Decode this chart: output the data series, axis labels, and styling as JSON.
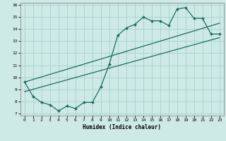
{
  "xlabel": "Humidex (Indice chaleur)",
  "ylabel": "",
  "xlim": [
    -0.5,
    23.5
  ],
  "ylim": [
    6.8,
    16.2
  ],
  "yticks": [
    7,
    8,
    9,
    10,
    11,
    12,
    13,
    14,
    15,
    16
  ],
  "xticks": [
    0,
    1,
    2,
    3,
    4,
    5,
    6,
    7,
    8,
    9,
    10,
    11,
    12,
    13,
    14,
    15,
    16,
    17,
    18,
    19,
    20,
    21,
    22,
    23
  ],
  "bg_color": "#ceeae6",
  "grid_color": "#aad4ce",
  "line_color": "#1e6b5e",
  "line1_x": [
    0,
    1,
    2,
    3,
    4,
    5,
    6,
    7,
    8,
    9,
    10,
    11,
    12,
    13,
    14,
    15,
    16,
    17,
    18,
    19,
    20,
    21,
    22,
    23
  ],
  "line1_y": [
    9.6,
    8.4,
    7.9,
    7.7,
    7.2,
    7.6,
    7.4,
    7.9,
    7.9,
    9.2,
    11.1,
    13.5,
    14.1,
    14.4,
    15.0,
    14.7,
    14.7,
    14.3,
    15.7,
    15.8,
    14.9,
    14.9,
    13.6,
    13.6
  ],
  "line2_x": [
    0,
    23
  ],
  "line2_y": [
    8.8,
    13.3
  ],
  "line3_x": [
    0,
    23
  ],
  "line3_y": [
    9.6,
    14.5
  ]
}
